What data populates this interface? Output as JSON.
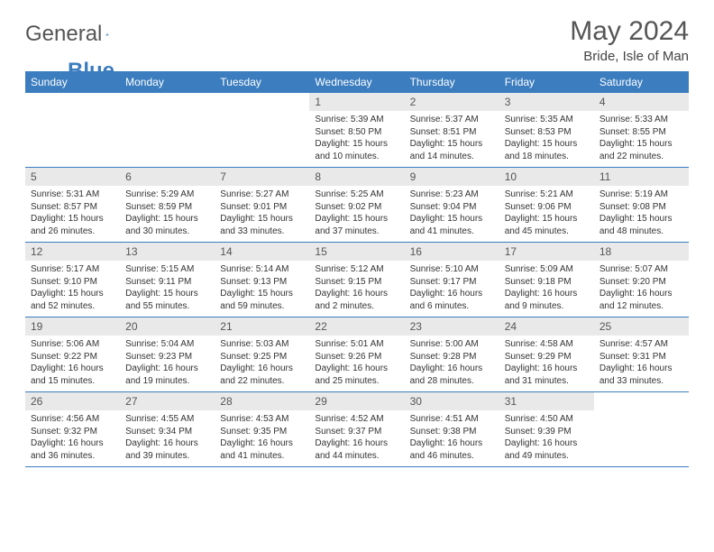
{
  "brand": {
    "general": "General",
    "blue": "Blue"
  },
  "header": {
    "month": "May 2024",
    "location": "Bride, Isle of Man"
  },
  "style": {
    "accent": "#3b7dbf",
    "header_bg": "#3b7dbf",
    "header_text": "#ffffff",
    "daynum_bg": "#e9e9e9",
    "border": "#3b7dbf",
    "title_fontsize": 30,
    "dayheader_fontsize": 12,
    "body_fontsize": 10
  },
  "weekdays": [
    "Sunday",
    "Monday",
    "Tuesday",
    "Wednesday",
    "Thursday",
    "Friday",
    "Saturday"
  ],
  "grid": [
    [
      null,
      null,
      null,
      {
        "n": "1",
        "sr": "Sunrise: 5:39 AM",
        "ss": "Sunset: 8:50 PM",
        "d1": "Daylight: 15 hours",
        "d2": "and 10 minutes."
      },
      {
        "n": "2",
        "sr": "Sunrise: 5:37 AM",
        "ss": "Sunset: 8:51 PM",
        "d1": "Daylight: 15 hours",
        "d2": "and 14 minutes."
      },
      {
        "n": "3",
        "sr": "Sunrise: 5:35 AM",
        "ss": "Sunset: 8:53 PM",
        "d1": "Daylight: 15 hours",
        "d2": "and 18 minutes."
      },
      {
        "n": "4",
        "sr": "Sunrise: 5:33 AM",
        "ss": "Sunset: 8:55 PM",
        "d1": "Daylight: 15 hours",
        "d2": "and 22 minutes."
      }
    ],
    [
      {
        "n": "5",
        "sr": "Sunrise: 5:31 AM",
        "ss": "Sunset: 8:57 PM",
        "d1": "Daylight: 15 hours",
        "d2": "and 26 minutes."
      },
      {
        "n": "6",
        "sr": "Sunrise: 5:29 AM",
        "ss": "Sunset: 8:59 PM",
        "d1": "Daylight: 15 hours",
        "d2": "and 30 minutes."
      },
      {
        "n": "7",
        "sr": "Sunrise: 5:27 AM",
        "ss": "Sunset: 9:01 PM",
        "d1": "Daylight: 15 hours",
        "d2": "and 33 minutes."
      },
      {
        "n": "8",
        "sr": "Sunrise: 5:25 AM",
        "ss": "Sunset: 9:02 PM",
        "d1": "Daylight: 15 hours",
        "d2": "and 37 minutes."
      },
      {
        "n": "9",
        "sr": "Sunrise: 5:23 AM",
        "ss": "Sunset: 9:04 PM",
        "d1": "Daylight: 15 hours",
        "d2": "and 41 minutes."
      },
      {
        "n": "10",
        "sr": "Sunrise: 5:21 AM",
        "ss": "Sunset: 9:06 PM",
        "d1": "Daylight: 15 hours",
        "d2": "and 45 minutes."
      },
      {
        "n": "11",
        "sr": "Sunrise: 5:19 AM",
        "ss": "Sunset: 9:08 PM",
        "d1": "Daylight: 15 hours",
        "d2": "and 48 minutes."
      }
    ],
    [
      {
        "n": "12",
        "sr": "Sunrise: 5:17 AM",
        "ss": "Sunset: 9:10 PM",
        "d1": "Daylight: 15 hours",
        "d2": "and 52 minutes."
      },
      {
        "n": "13",
        "sr": "Sunrise: 5:15 AM",
        "ss": "Sunset: 9:11 PM",
        "d1": "Daylight: 15 hours",
        "d2": "and 55 minutes."
      },
      {
        "n": "14",
        "sr": "Sunrise: 5:14 AM",
        "ss": "Sunset: 9:13 PM",
        "d1": "Daylight: 15 hours",
        "d2": "and 59 minutes."
      },
      {
        "n": "15",
        "sr": "Sunrise: 5:12 AM",
        "ss": "Sunset: 9:15 PM",
        "d1": "Daylight: 16 hours",
        "d2": "and 2 minutes."
      },
      {
        "n": "16",
        "sr": "Sunrise: 5:10 AM",
        "ss": "Sunset: 9:17 PM",
        "d1": "Daylight: 16 hours",
        "d2": "and 6 minutes."
      },
      {
        "n": "17",
        "sr": "Sunrise: 5:09 AM",
        "ss": "Sunset: 9:18 PM",
        "d1": "Daylight: 16 hours",
        "d2": "and 9 minutes."
      },
      {
        "n": "18",
        "sr": "Sunrise: 5:07 AM",
        "ss": "Sunset: 9:20 PM",
        "d1": "Daylight: 16 hours",
        "d2": "and 12 minutes."
      }
    ],
    [
      {
        "n": "19",
        "sr": "Sunrise: 5:06 AM",
        "ss": "Sunset: 9:22 PM",
        "d1": "Daylight: 16 hours",
        "d2": "and 15 minutes."
      },
      {
        "n": "20",
        "sr": "Sunrise: 5:04 AM",
        "ss": "Sunset: 9:23 PM",
        "d1": "Daylight: 16 hours",
        "d2": "and 19 minutes."
      },
      {
        "n": "21",
        "sr": "Sunrise: 5:03 AM",
        "ss": "Sunset: 9:25 PM",
        "d1": "Daylight: 16 hours",
        "d2": "and 22 minutes."
      },
      {
        "n": "22",
        "sr": "Sunrise: 5:01 AM",
        "ss": "Sunset: 9:26 PM",
        "d1": "Daylight: 16 hours",
        "d2": "and 25 minutes."
      },
      {
        "n": "23",
        "sr": "Sunrise: 5:00 AM",
        "ss": "Sunset: 9:28 PM",
        "d1": "Daylight: 16 hours",
        "d2": "and 28 minutes."
      },
      {
        "n": "24",
        "sr": "Sunrise: 4:58 AM",
        "ss": "Sunset: 9:29 PM",
        "d1": "Daylight: 16 hours",
        "d2": "and 31 minutes."
      },
      {
        "n": "25",
        "sr": "Sunrise: 4:57 AM",
        "ss": "Sunset: 9:31 PM",
        "d1": "Daylight: 16 hours",
        "d2": "and 33 minutes."
      }
    ],
    [
      {
        "n": "26",
        "sr": "Sunrise: 4:56 AM",
        "ss": "Sunset: 9:32 PM",
        "d1": "Daylight: 16 hours",
        "d2": "and 36 minutes."
      },
      {
        "n": "27",
        "sr": "Sunrise: 4:55 AM",
        "ss": "Sunset: 9:34 PM",
        "d1": "Daylight: 16 hours",
        "d2": "and 39 minutes."
      },
      {
        "n": "28",
        "sr": "Sunrise: 4:53 AM",
        "ss": "Sunset: 9:35 PM",
        "d1": "Daylight: 16 hours",
        "d2": "and 41 minutes."
      },
      {
        "n": "29",
        "sr": "Sunrise: 4:52 AM",
        "ss": "Sunset: 9:37 PM",
        "d1": "Daylight: 16 hours",
        "d2": "and 44 minutes."
      },
      {
        "n": "30",
        "sr": "Sunrise: 4:51 AM",
        "ss": "Sunset: 9:38 PM",
        "d1": "Daylight: 16 hours",
        "d2": "and 46 minutes."
      },
      {
        "n": "31",
        "sr": "Sunrise: 4:50 AM",
        "ss": "Sunset: 9:39 PM",
        "d1": "Daylight: 16 hours",
        "d2": "and 49 minutes."
      },
      null
    ]
  ]
}
